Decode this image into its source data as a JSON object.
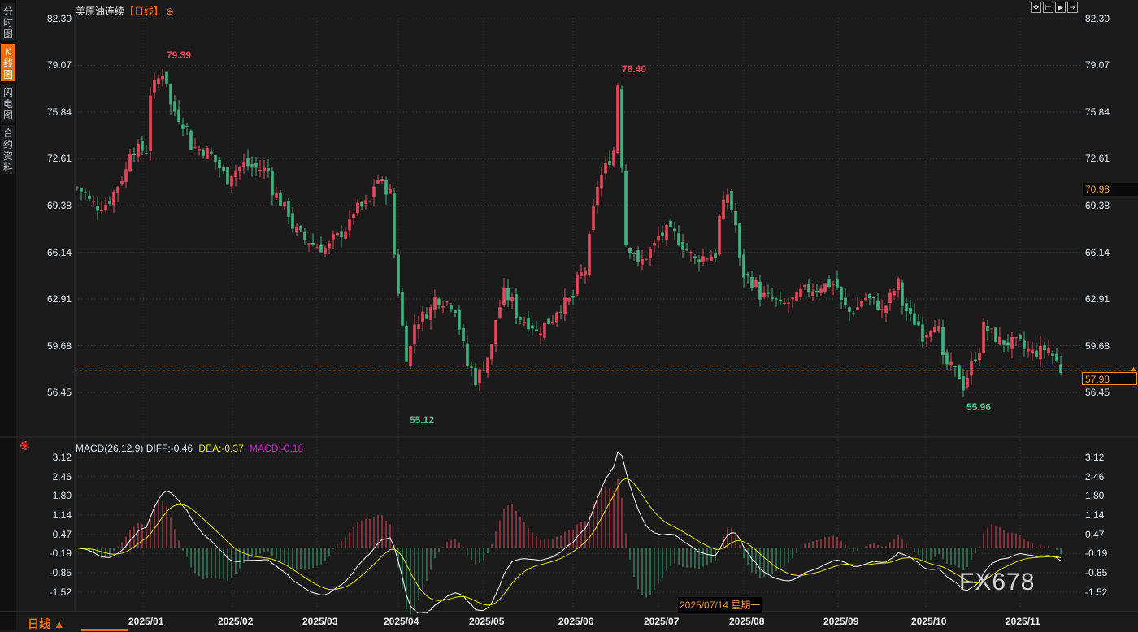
{
  "sidebar": {
    "items": [
      {
        "label": "分时图",
        "active": false
      },
      {
        "label": "K线图",
        "active": true
      },
      {
        "label": "闪电图",
        "active": false
      },
      {
        "label": "合约资料",
        "active": false
      }
    ]
  },
  "header": {
    "instrument": "美原油连续",
    "period": "【日线】",
    "add_icon": "plus-circle-icon"
  },
  "toolbar": {
    "icons": [
      "crosshair-icon",
      "zoom-range-icon",
      "play-icon",
      "move-right-icon"
    ]
  },
  "price_tags": {
    "cursor": "70.98",
    "last": "57.98"
  },
  "markers": {
    "high1": "79.39",
    "high2": "78.40",
    "low1": "55.12",
    "low2": "55.96"
  },
  "macd": {
    "label": "MACD(26,12,9)",
    "diff": "DIFF:-0.46",
    "dea": "DEA:-0.37",
    "macd": "MACD:-0.18",
    "colors": {
      "diff": "#ffffff",
      "dea": "#e6e600",
      "macd": "#d020d0"
    }
  },
  "bottom": {
    "period_button": "日线 ▲",
    "cursor_date": "2025/07/14 星期一"
  },
  "watermark": "FX678",
  "colors": {
    "up": "#e8465a",
    "down": "#3fb27f",
    "accent": "#f26b0f",
    "last_line": "#f29020"
  },
  "chart_data": [
    {
      "type": "candlestick",
      "title": "美原油连续【日线】",
      "y_ticks": [
        "82.30",
        "79.07",
        "75.84",
        "72.61",
        "69.38",
        "66.14",
        "62.91",
        "59.68",
        "56.45"
      ],
      "ylim": [
        56.45,
        82.3
      ],
      "x_ticks": [
        "2025/01",
        "2025/02",
        "2025/03",
        "2025/04",
        "2025/05",
        "2025/06",
        "2025/07",
        "2025/08",
        "2025/09",
        "2025/10",
        "2025/11"
      ],
      "last_price": 57.98,
      "approx_close_keypoints": [
        [
          "2024-12-11",
          70.6
        ],
        [
          "2024-12-18",
          69.3
        ],
        [
          "2024-12-23",
          69.8
        ],
        [
          "2024-12-30",
          73.3
        ],
        [
          "2025-01-03",
          73.2
        ],
        [
          "2025-01-06",
          77.2
        ],
        [
          "2025-01-09",
          78.6
        ],
        [
          "2025-01-13",
          76.3
        ],
        [
          "2025-01-20",
          73.5
        ],
        [
          "2025-01-27",
          72.8
        ],
        [
          "2025-01-31",
          71.2
        ],
        [
          "2025-02-06",
          72.2
        ],
        [
          "2025-02-14",
          71.8
        ],
        [
          "2025-02-20",
          69.2
        ],
        [
          "2025-02-27",
          67.0
        ],
        [
          "2025-03-06",
          66.4
        ],
        [
          "2025-03-11",
          67.2
        ],
        [
          "2025-03-17",
          69.0
        ],
        [
          "2025-03-21",
          69.6
        ],
        [
          "2025-03-25",
          71.2
        ],
        [
          "2025-03-28",
          70.2
        ],
        [
          "2025-03-31",
          66.0
        ],
        [
          "2025-04-02",
          61.0
        ],
        [
          "2025-04-03",
          59.0
        ],
        [
          "2025-04-07",
          61.2
        ],
        [
          "2025-04-14",
          63.0
        ],
        [
          "2025-04-21",
          62.3
        ],
        [
          "2025-04-24",
          58.3
        ],
        [
          "2025-04-28",
          57.3
        ],
        [
          "2025-04-30",
          58.3
        ],
        [
          "2025-05-05",
          61.5
        ],
        [
          "2025-05-07",
          63.3
        ],
        [
          "2025-05-13",
          61.6
        ],
        [
          "2025-05-19",
          60.6
        ],
        [
          "2025-05-23",
          61.6
        ],
        [
          "2025-05-30",
          63.0
        ],
        [
          "2025-06-04",
          65.0
        ],
        [
          "2025-06-06",
          69.0
        ],
        [
          "2025-06-11",
          72.0
        ],
        [
          "2025-06-13",
          73.2
        ],
        [
          "2025-06-16",
          77.8
        ],
        [
          "2025-06-18",
          66.8
        ],
        [
          "2025-06-23",
          65.2
        ],
        [
          "2025-06-27",
          66.6
        ],
        [
          "2025-07-02",
          67.6
        ],
        [
          "2025-07-07",
          67.0
        ],
        [
          "2025-07-11",
          65.6
        ],
        [
          "2025-07-18",
          66.0
        ],
        [
          "2025-07-23",
          70.2
        ],
        [
          "2025-07-25",
          68.0
        ],
        [
          "2025-07-29",
          64.6
        ],
        [
          "2025-08-04",
          63.2
        ],
        [
          "2025-08-11",
          62.4
        ],
        [
          "2025-08-20",
          63.6
        ],
        [
          "2025-08-28",
          64.0
        ],
        [
          "2025-09-03",
          62.0
        ],
        [
          "2025-09-09",
          63.0
        ],
        [
          "2025-09-15",
          62.0
        ],
        [
          "2025-09-19",
          64.0
        ],
        [
          "2025-09-24",
          61.6
        ],
        [
          "2025-09-29",
          60.4
        ],
        [
          "2025-10-02",
          61.4
        ],
        [
          "2025-10-06",
          58.6
        ],
        [
          "2025-10-13",
          56.9
        ],
        [
          "2025-10-16",
          59.0
        ],
        [
          "2025-10-20",
          61.0
        ],
        [
          "2025-10-24",
          60.0
        ],
        [
          "2025-10-31",
          59.8
        ],
        [
          "2025-11-05",
          59.2
        ],
        [
          "2025-11-11",
          59.5
        ],
        [
          "2025-11-14",
          58.0
        ]
      ],
      "annotations": [
        {
          "label": "79.39",
          "type": "high"
        },
        {
          "label": "78.40",
          "type": "high"
        },
        {
          "label": "55.12",
          "type": "low"
        },
        {
          "label": "55.96",
          "type": "low"
        }
      ]
    },
    {
      "type": "macd",
      "y_ticks": [
        "3.12",
        "2.46",
        "1.80",
        "1.14",
        "0.47",
        "-0.19",
        "-0.85",
        "-1.52"
      ],
      "ylim": [
        -1.52,
        3.12
      ],
      "params": [
        26,
        12,
        9
      ],
      "latest": {
        "diff": -0.46,
        "dea": -0.37,
        "macd": -0.18
      }
    }
  ]
}
